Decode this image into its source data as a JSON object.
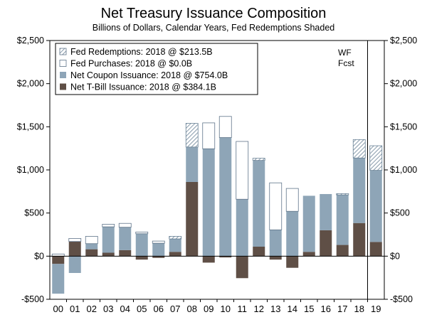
{
  "chart_data": {
    "type": "bar",
    "title": "Net Treasury Issuance Composition",
    "subtitle": "Billions of Dollars, Calendar Years, Fed Redemptions Shaded",
    "categories": [
      "00",
      "01",
      "02",
      "03",
      "04",
      "05",
      "06",
      "07",
      "08",
      "09",
      "10",
      "11",
      "12",
      "13",
      "14",
      "15",
      "16",
      "17",
      "18",
      "19"
    ],
    "ylim": [
      -500,
      2500
    ],
    "yticks": [
      -500,
      0,
      500,
      1000,
      1500,
      2000,
      2500
    ],
    "ytick_labels": [
      "-$500",
      "$0",
      "$500",
      "$1,000",
      "$1,500",
      "$2,000",
      "$2,500"
    ],
    "forecast_label": [
      "WF",
      "Fcst"
    ],
    "forecast_from_category": "19",
    "series": [
      {
        "name": "Net T-Bill Issuance",
        "legend": "Net T-Bill Issuance: 2018 @ $384.1B",
        "color": "#5f4f46",
        "values": [
          -90,
          170,
          80,
          40,
          70,
          -40,
          -20,
          50,
          860,
          -75,
          -15,
          -255,
          110,
          -40,
          -135,
          50,
          300,
          130,
          384.1,
          165
        ]
      },
      {
        "name": "Net Coupon Issuance",
        "legend": "Net Coupon Issuance: 2018 @ $754.0B",
        "color": "#8ea5b7",
        "values": [
          -345,
          -195,
          65,
          300,
          265,
          260,
          150,
          150,
          405,
          1245,
          1375,
          660,
          1000,
          305,
          520,
          650,
          420,
          580,
          754.0,
          830
        ]
      },
      {
        "name": "Fed Purchases",
        "legend": "Fed Purchases: 2018 @ $0.0B",
        "color": "#ffffff",
        "values": [
          25,
          35,
          85,
          30,
          45,
          20,
          25,
          0,
          0,
          300,
          245,
          670,
          0,
          545,
          265,
          0,
          0,
          0,
          0.0,
          0
        ]
      },
      {
        "name": "Fed Redemptions",
        "legend": "Fed Redemptions: 2018 @ $213.5B",
        "color": "hatch",
        "values": [
          0,
          0,
          0,
          0,
          0,
          0,
          0,
          30,
          275,
          0,
          0,
          0,
          25,
          0,
          0,
          0,
          0,
          15,
          213.5,
          285
        ]
      }
    ],
    "legend_order": [
      "Fed Redemptions",
      "Fed Purchases",
      "Net Coupon Issuance",
      "Net T-Bill Issuance"
    ]
  }
}
